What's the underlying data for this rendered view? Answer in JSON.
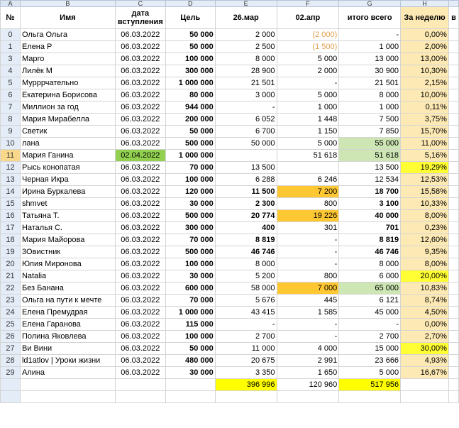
{
  "columns": [
    "A",
    "B",
    "C",
    "D",
    "E",
    "F",
    "G",
    "H",
    ""
  ],
  "header": {
    "num": "№",
    "name": "Имя",
    "date": "дата вступления",
    "goal": "Цель",
    "mar26": "26.мар",
    "apr02": "02.апр",
    "total": "итого всего",
    "week": "За неделю",
    "extra": "в"
  },
  "rows": [
    {
      "n": "0",
      "name": "Ольга Ольга",
      "date": "06.03.2022",
      "goal": "50 000",
      "m": "2 000",
      "a": "(2 000)",
      "t": "-",
      "w": "0,00%"
    },
    {
      "n": "1",
      "name": "Елена Р",
      "date": "06.03.2022",
      "goal": "50 000",
      "m": "2 500",
      "a": "(1 500)",
      "t": "1 000",
      "w": "2,00%"
    },
    {
      "n": "3",
      "name": "Марго",
      "date": "06.03.2022",
      "goal": "100 000",
      "m": "8 000",
      "a": "5 000",
      "t": "13 000",
      "w": "13,00%"
    },
    {
      "n": "4",
      "name": "Лилёк М",
      "date": "06.03.2022",
      "goal": "300 000",
      "m": "28 900",
      "a": "2 000",
      "t": "30 900",
      "w": "10,30%"
    },
    {
      "n": "5",
      "name": "Мурррчательно",
      "date": "06.03.2022",
      "goal": "1 000 000",
      "m": "21 501",
      "a": "-",
      "t": "21 501",
      "w": "2,15%"
    },
    {
      "n": "6",
      "name": "Екатерина Борисова",
      "date": "06.03.2022",
      "goal": "80 000",
      "m": "3 000",
      "a": "5 000",
      "t": "8 000",
      "w": "10,00%"
    },
    {
      "n": "7",
      "name": "Миллион за год",
      "date": "06.03.2022",
      "goal": "944 000",
      "m": "-",
      "a": "1 000",
      "t": "1 000",
      "w": "0,11%"
    },
    {
      "n": "8",
      "name": "Мария Мирабелла",
      "date": "06.03.2022",
      "goal": "200 000",
      "m": "6 052",
      "a": "1 448",
      "t": "7 500",
      "w": "3,75%"
    },
    {
      "n": "9",
      "name": "Светик",
      "date": "06.03.2022",
      "goal": "50 000",
      "m": "6 700",
      "a": "1 150",
      "t": "7 850",
      "w": "15,70%"
    },
    {
      "n": "10",
      "name": "лана",
      "date": "06.03.2022",
      "goal": "500 000",
      "m": "50 000",
      "a": "5 000",
      "t": "55 000",
      "w": "11,00%"
    },
    {
      "n": "11",
      "name": "Мария Ганина",
      "date": "02.04.2022",
      "goal": "1 000 000",
      "m": "",
      "a": "51 618",
      "t": "51 618",
      "w": "5,16%"
    },
    {
      "n": "12",
      "name": "Рысь конопатая",
      "date": "06.03.2022",
      "goal": "70 000",
      "m": "13 500",
      "a": "",
      "t": "13 500",
      "w": "19,29%"
    },
    {
      "n": "13",
      "name": "Черная Икра",
      "date": "06.03.2022",
      "goal": "100 000",
      "m": "6 288",
      "a": "6 246",
      "t": "12 534",
      "w": "12,53%"
    },
    {
      "n": "14",
      "name": "Ирина Буркалева",
      "date": "06.03.2022",
      "goal": "120 000",
      "m": "11 500",
      "a": "7 200",
      "t": "18 700",
      "w": "15,58%"
    },
    {
      "n": "15",
      "name": "shmvet",
      "date": "06.03.2022",
      "goal": "30 000",
      "m": "2 300",
      "a": "800",
      "t": "3 100",
      "w": "10,33%"
    },
    {
      "n": "16",
      "name": "Татьяна Т.",
      "date": "06.03.2022",
      "goal": "500 000",
      "m": "20 774",
      "a": "19 226",
      "t": "40 000",
      "w": "8,00%"
    },
    {
      "n": "17",
      "name": "Наталья С.",
      "date": "06.03.2022",
      "goal": "300 000",
      "m": "400",
      "a": "301",
      "t": "701",
      "w": "0,23%"
    },
    {
      "n": "18",
      "name": "Мария Майорова",
      "date": "06.03.2022",
      "goal": "70 000",
      "m": "8 819",
      "a": "-",
      "t": "8 819",
      "w": "12,60%"
    },
    {
      "n": "19",
      "name": "3Овистник",
      "date": "06.03.2022",
      "goal": "500 000",
      "m": "46 746",
      "a": "-",
      "t": "46 746",
      "w": "9,35%"
    },
    {
      "n": "20",
      "name": "Юлия Миронова",
      "date": "06.03.2022",
      "goal": "100 000",
      "m": "8 000",
      "a": "-",
      "t": "8 000",
      "w": "8,00%"
    },
    {
      "n": "21",
      "name": "Natalia",
      "date": "06.03.2022",
      "goal": "30 000",
      "m": "5 200",
      "a": "800",
      "t": "6 000",
      "w": "20,00%"
    },
    {
      "n": "22",
      "name": "Без Банана",
      "date": "06.03.2022",
      "goal": "600 000",
      "m": "58 000",
      "a": "7 000",
      "t": "65 000",
      "w": "10,83%"
    },
    {
      "n": "23",
      "name": "Ольга на пути к мечте",
      "date": "06.03.2022",
      "goal": "70 000",
      "m": "5 676",
      "a": "445",
      "t": "6 121",
      "w": "8,74%"
    },
    {
      "n": "24",
      "name": "Елена Премудрая",
      "date": "06.03.2022",
      "goal": "1 000 000",
      "m": "43 415",
      "a": "1 585",
      "t": "45 000",
      "w": "4,50%"
    },
    {
      "n": "25",
      "name": "Елена Гаранова",
      "date": "06.03.2022",
      "goal": "115 000",
      "m": "-",
      "a": "-",
      "t": "-",
      "w": "0,00%"
    },
    {
      "n": "26",
      "name": "Полина Яковлева",
      "date": "06.03.2022",
      "goal": "100 000",
      "m": "2 700",
      "a": "-",
      "t": "2 700",
      "w": "2,70%"
    },
    {
      "n": "27",
      "name": "Ви Вини",
      "date": "06.03.2022",
      "goal": "50 000",
      "m": "11 000",
      "a": "4 000",
      "t": "15 000",
      "w": "30,00%"
    },
    {
      "n": "28",
      "name": "ld1atlov |  Уроки жизни",
      "date": "06.03.2022",
      "goal": "480 000",
      "m": "20 675",
      "a": "2 991",
      "t": "23 666",
      "w": "4,93%"
    },
    {
      "n": "29",
      "name": "Алина",
      "date": "06.03.2022",
      "goal": "30 000",
      "m": "3 350",
      "a": "1 650",
      "t": "5 000",
      "w": "16,67%"
    }
  ],
  "totals": {
    "m": "396 996",
    "a": "120 960",
    "t": "517 956"
  }
}
